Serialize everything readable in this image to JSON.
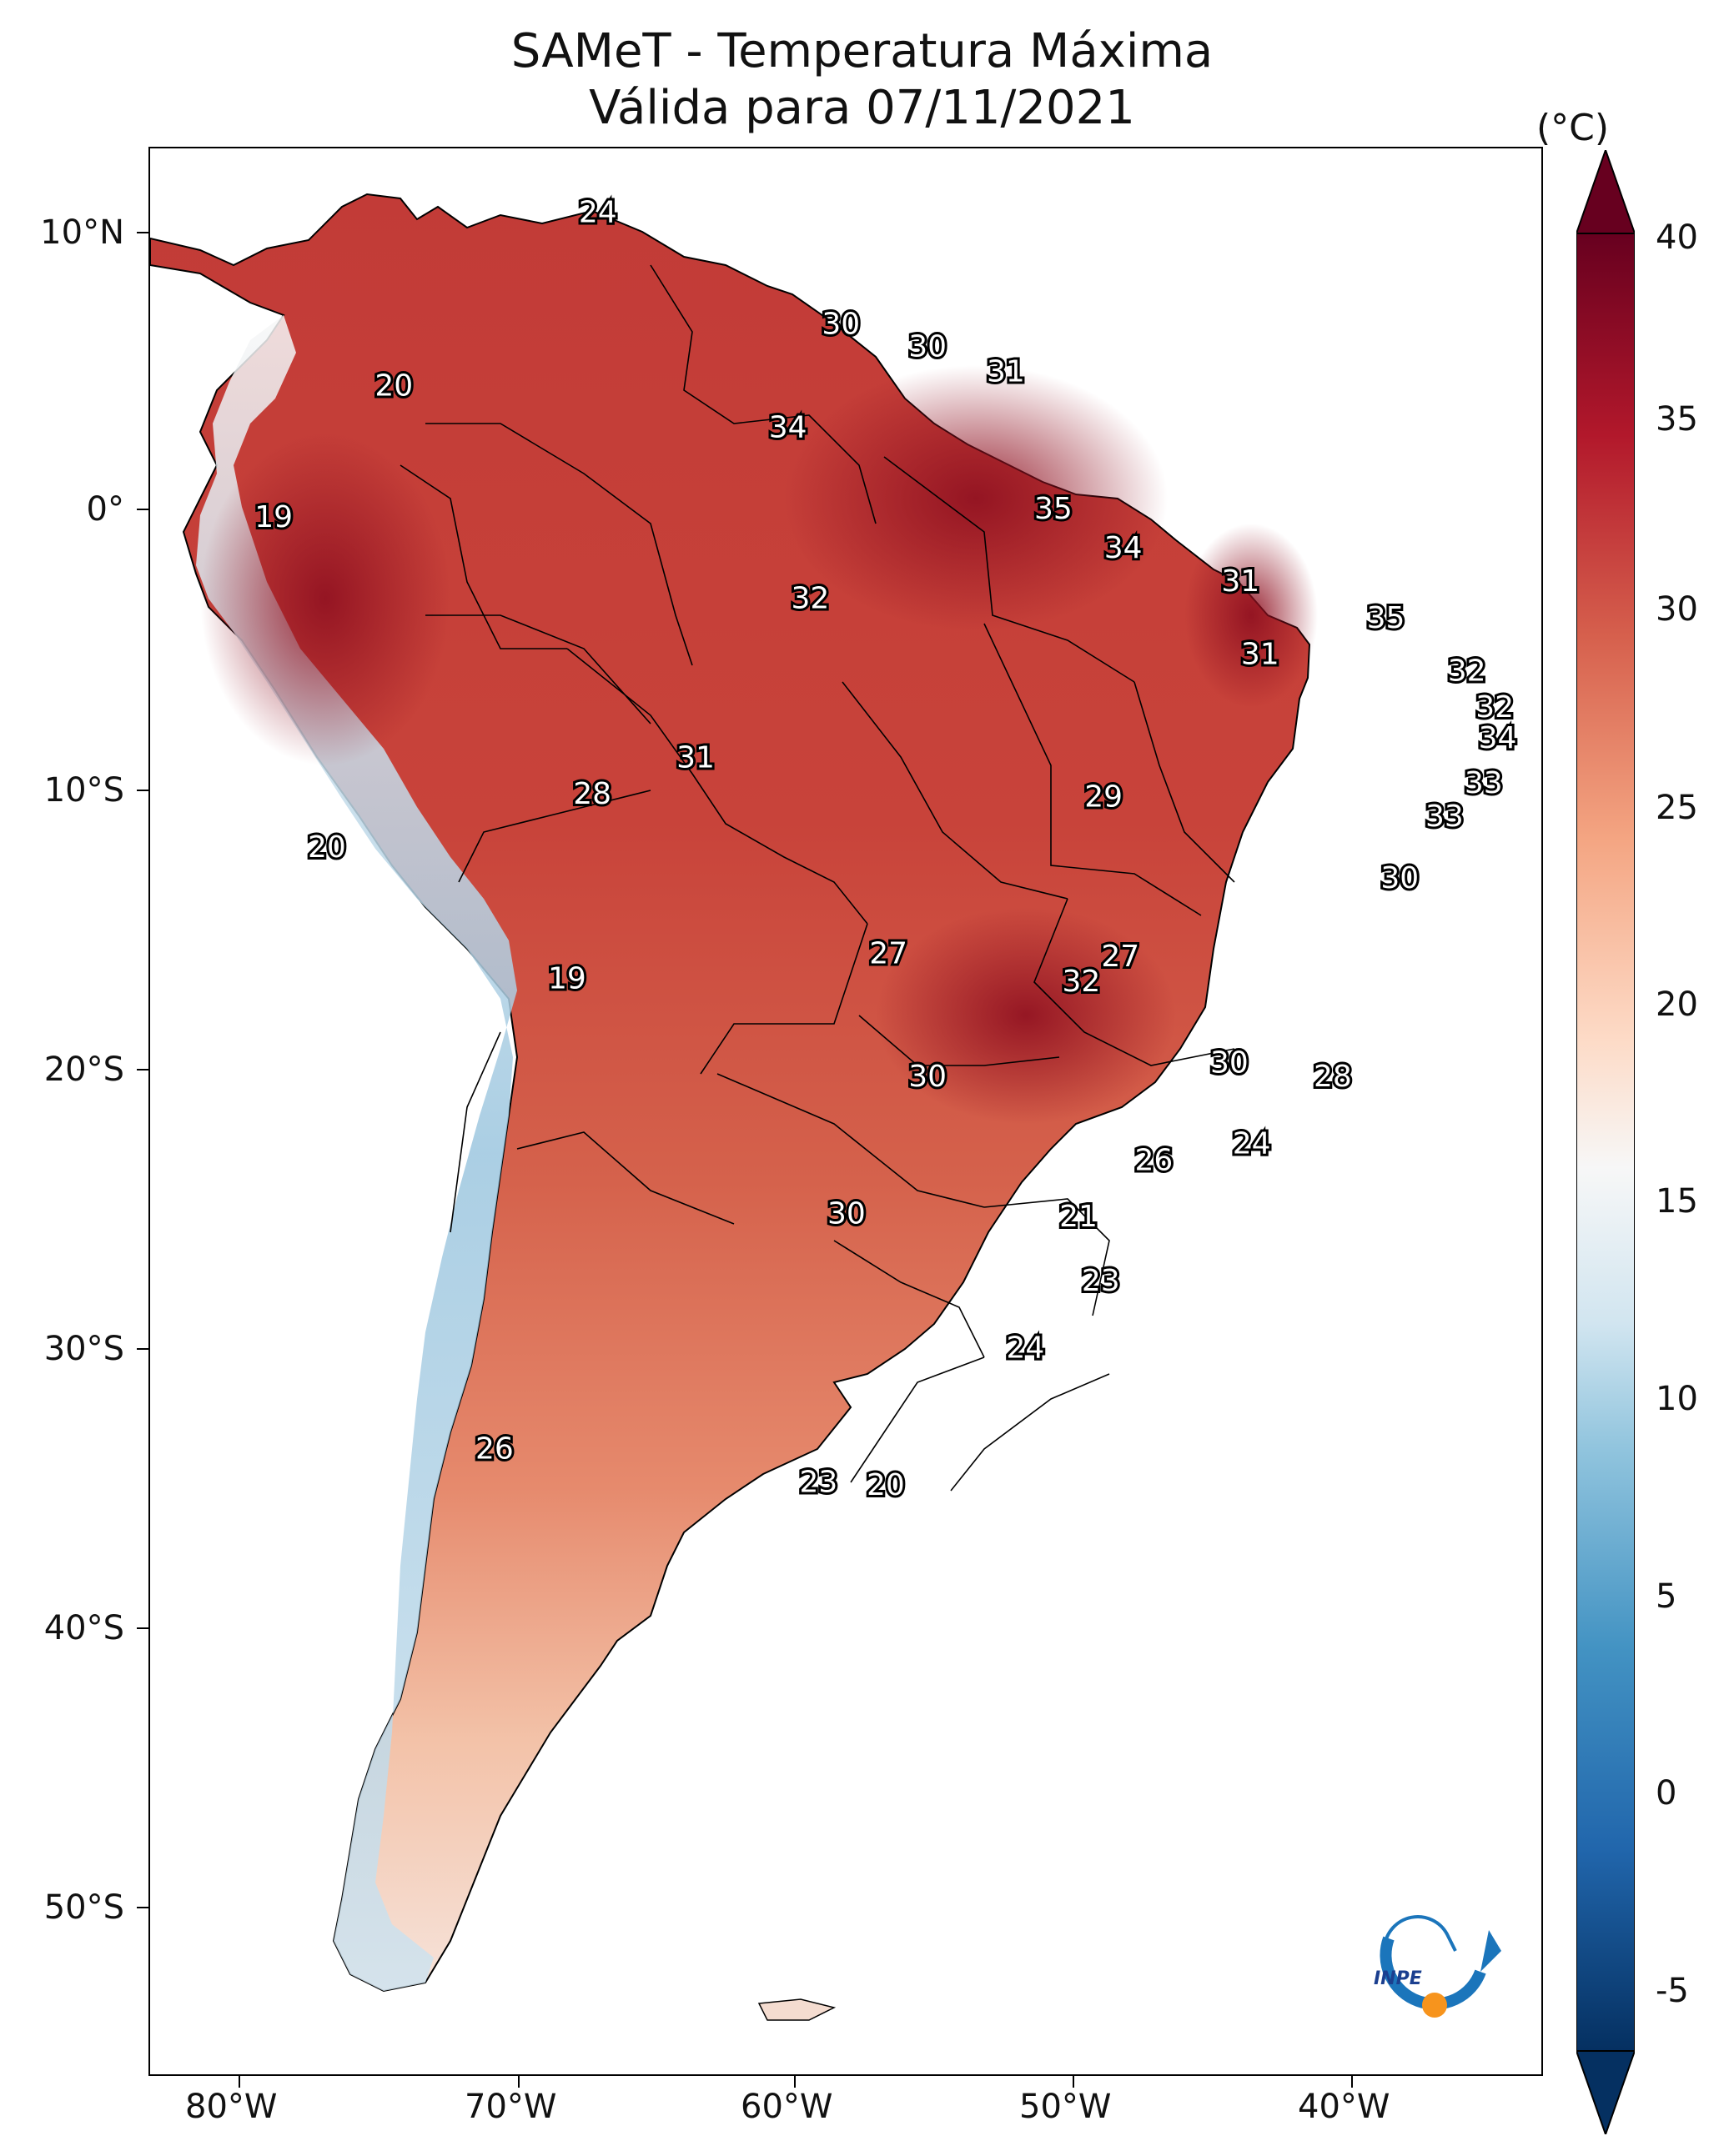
{
  "title": {
    "line1": "SAMeT - Temperatura Máxima",
    "line2": "Válida para 07/11/2021"
  },
  "axes": {
    "lat_ticks": [
      "10°N",
      "0°",
      "10°S",
      "20°S",
      "30°S",
      "40°S",
      "50°S"
    ],
    "lon_ticks": [
      "80°W",
      "70°W",
      "60°W",
      "50°W",
      "40°W"
    ]
  },
  "colorbar": {
    "unit": "(°C)",
    "ticks": [
      "40",
      "35",
      "30",
      "25",
      "20",
      "15",
      "10",
      "5",
      "0",
      "-5"
    ],
    "min": -5,
    "max": 40,
    "colors": {
      "c40": "#67001f",
      "c35": "#b2182b",
      "c30": "#d6604d",
      "c25": "#f4a582",
      "c20": "#fddbc7",
      "c17": "#f7f7f7",
      "c13": "#d1e5f0",
      "c10": "#92c5de",
      "c5": "#4393c3",
      "c0": "#2166ac",
      "cm5": "#053061"
    }
  },
  "temperature_labels": [
    {
      "text": "24",
      "lon": -67.2,
      "lat": 10.6
    },
    {
      "text": "20",
      "lon": -74.5,
      "lat": 4.4
    },
    {
      "text": "30",
      "lon": -58.5,
      "lat": 6.6
    },
    {
      "text": "30",
      "lon": -55.4,
      "lat": 5.8
    },
    {
      "text": "31",
      "lon": -52.6,
      "lat": 4.9
    },
    {
      "text": "34",
      "lon": -60.4,
      "lat": 2.9
    },
    {
      "text": "19",
      "lon": -78.8,
      "lat": -0.3
    },
    {
      "text": "35",
      "lon": -50.9,
      "lat": 0.0
    },
    {
      "text": "34",
      "lon": -48.4,
      "lat": -1.4
    },
    {
      "text": "31",
      "lon": -44.2,
      "lat": -2.6
    },
    {
      "text": "32",
      "lon": -59.6,
      "lat": -3.2
    },
    {
      "text": "35",
      "lon": -39.0,
      "lat": -3.9
    },
    {
      "text": "31",
      "lon": -43.5,
      "lat": -5.2
    },
    {
      "text": "32",
      "lon": -36.1,
      "lat": -5.8
    },
    {
      "text": "32",
      "lon": -35.1,
      "lat": -7.1
    },
    {
      "text": "34",
      "lon": -35.0,
      "lat": -8.2
    },
    {
      "text": "31",
      "lon": -63.7,
      "lat": -8.9
    },
    {
      "text": "28",
      "lon": -67.4,
      "lat": -10.2
    },
    {
      "text": "29",
      "lon": -49.1,
      "lat": -10.3
    },
    {
      "text": "33",
      "lon": -35.5,
      "lat": -9.8
    },
    {
      "text": "33",
      "lon": -36.9,
      "lat": -11.0
    },
    {
      "text": "20",
      "lon": -76.9,
      "lat": -12.1
    },
    {
      "text": "30",
      "lon": -38.5,
      "lat": -13.2
    },
    {
      "text": "27",
      "lon": -56.8,
      "lat": -15.9
    },
    {
      "text": "27",
      "lon": -48.5,
      "lat": -16.0
    },
    {
      "text": "32",
      "lon": -49.9,
      "lat": -16.9
    },
    {
      "text": "19",
      "lon": -68.3,
      "lat": -16.8
    },
    {
      "text": "30",
      "lon": -55.4,
      "lat": -20.3
    },
    {
      "text": "30",
      "lon": -44.6,
      "lat": -19.8
    },
    {
      "text": "28",
      "lon": -40.9,
      "lat": -20.3
    },
    {
      "text": "24",
      "lon": -43.8,
      "lat": -22.7
    },
    {
      "text": "26",
      "lon": -47.3,
      "lat": -23.3
    },
    {
      "text": "21",
      "lon": -50.0,
      "lat": -25.3
    },
    {
      "text": "30",
      "lon": -58.3,
      "lat": -25.2
    },
    {
      "text": "23",
      "lon": -49.2,
      "lat": -27.6
    },
    {
      "text": "24",
      "lon": -51.9,
      "lat": -30.0
    },
    {
      "text": "26",
      "lon": -70.9,
      "lat": -33.6
    },
    {
      "text": "23",
      "lon": -59.3,
      "lat": -34.8
    },
    {
      "text": "20",
      "lon": -56.9,
      "lat": -34.9
    }
  ],
  "logo": {
    "text": "INPE"
  }
}
